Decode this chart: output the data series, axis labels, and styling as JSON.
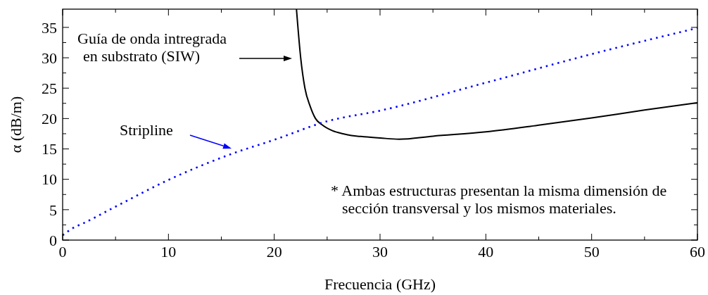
{
  "chart_data": {
    "type": "line",
    "xlabel": "Frecuencia (GHz)",
    "ylabel": "α (dB/m)",
    "xlim": [
      0,
      60
    ],
    "ylim": [
      0,
      38
    ],
    "xticks": [
      0,
      {
        "value": 5,
        "label": null
      },
      10,
      {
        "value": 15,
        "label": null
      },
      20,
      {
        "value": 25,
        "label": null
      },
      30,
      {
        "value": 35,
        "label": null
      },
      40,
      {
        "value": 45,
        "label": null
      },
      50,
      {
        "value": 55,
        "label": null
      },
      60
    ],
    "yticks": [
      0,
      {
        "value": 2.5,
        "label": null
      },
      5,
      {
        "value": 7.5,
        "label": null
      },
      10,
      {
        "value": 12.5,
        "label": null
      },
      15,
      {
        "value": 17.5,
        "label": null
      },
      20,
      {
        "value": 22.5,
        "label": null
      },
      25,
      {
        "value": 27.5,
        "label": null
      },
      30,
      {
        "value": 32.5,
        "label": null
      },
      35
    ],
    "grid": false,
    "series": [
      {
        "color": "#000000",
        "line_style": "solid",
        "x": [
          22.1,
          22.5,
          22.9,
          23.4,
          23.9,
          24.5,
          25.5,
          26.5,
          27.3,
          28.5,
          30,
          31.8,
          35,
          40,
          45,
          50,
          55,
          60
        ],
        "values": [
          38,
          30,
          25,
          22,
          20,
          19,
          18,
          17.5,
          17.2,
          17,
          16.8,
          16.6,
          17.1,
          17.8,
          18.9,
          20.1,
          21.4,
          22.6
        ]
      },
      {
        "color": "#0000ff",
        "line_style": "dotted",
        "x": [
          0,
          1,
          2,
          5,
          10,
          16,
          20,
          25.1,
          30,
          40,
          50,
          60
        ],
        "values": [
          0.8,
          2,
          2.8,
          5.5,
          9.9,
          14.2,
          16.5,
          19.6,
          21.3,
          25.9,
          30.6,
          34.9
        ]
      }
    ],
    "annotations": [
      "Guía de onda intregrada\nen substrato (SIW)",
      "Stripline",
      "* Ambas estructuras presentan la misma dimensión de\nsección transversal y los mismos materiales."
    ]
  }
}
